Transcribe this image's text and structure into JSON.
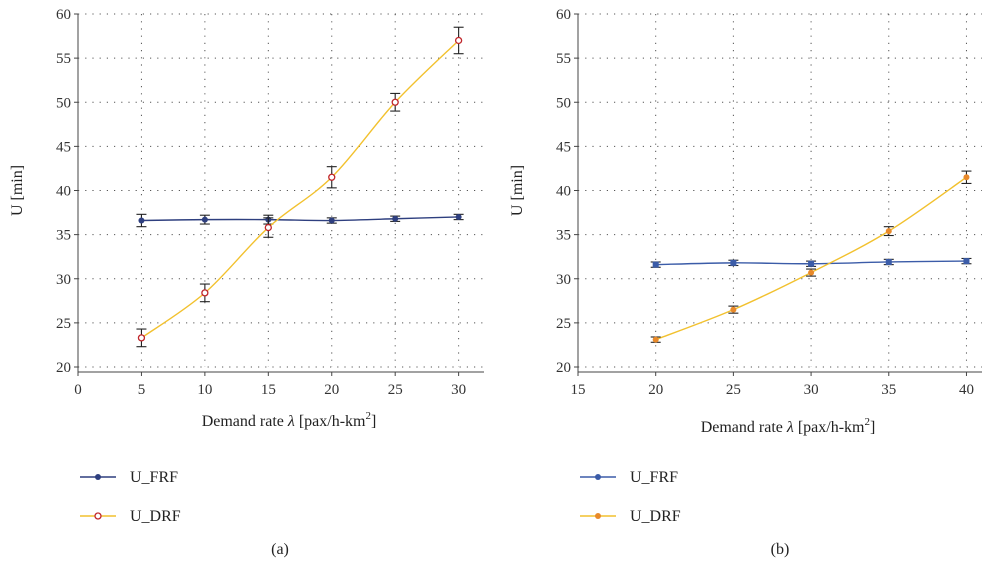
{
  "chart_data": [
    {
      "type": "line",
      "panel_label": "(a)",
      "xlabel_prefix": "Demand rate ",
      "xlabel_symbol": "λ",
      "xlabel_unit": " [pax/h-km",
      "xlabel_sup": "2",
      "xlabel_close": "]",
      "ylabel": "U [min]",
      "xlim": [
        0,
        32
      ],
      "ylim": [
        20,
        60
      ],
      "xticks": [
        0,
        5,
        10,
        15,
        20,
        25,
        30
      ],
      "yticks": [
        20,
        25,
        30,
        35,
        40,
        45,
        50,
        55,
        60
      ],
      "grid": "dotted",
      "legend_position": "bottom-left",
      "series": [
        {
          "name": "U_FRF",
          "color": "#2e3f7f",
          "marker": "filled-circle",
          "x": [
            5,
            10,
            15,
            20,
            25,
            30
          ],
          "y": [
            36.6,
            36.7,
            36.7,
            36.6,
            36.8,
            37.0
          ],
          "err": [
            0.7,
            0.5,
            0.5,
            0.3,
            0.3,
            0.3
          ]
        },
        {
          "name": "U_DRF",
          "color": "#f2c12e",
          "marker": "hollow-red-circle",
          "x": [
            5,
            10,
            15,
            20,
            25,
            30
          ],
          "y": [
            23.3,
            28.4,
            35.8,
            41.5,
            50.0,
            57.0
          ],
          "err": [
            1.0,
            1.0,
            1.1,
            1.2,
            1.0,
            1.5
          ]
        }
      ]
    },
    {
      "type": "line",
      "panel_label": "(b)",
      "xlabel_prefix": "Demand rate ",
      "xlabel_symbol": "λ",
      "xlabel_unit": " [pax/h-km",
      "xlabel_sup": "2",
      "xlabel_close": "]",
      "ylabel": "U [min]",
      "xlim": [
        15,
        41
      ],
      "ylim": [
        20,
        60
      ],
      "xticks": [
        15,
        20,
        25,
        30,
        35,
        40
      ],
      "yticks": [
        20,
        25,
        30,
        35,
        40,
        45,
        50,
        55,
        60
      ],
      "grid": "dotted",
      "legend_position": "bottom-left",
      "series": [
        {
          "name": "U_FRF",
          "color": "#3b5ca8",
          "marker": "filled-square",
          "x": [
            20,
            25,
            30,
            35,
            40
          ],
          "y": [
            31.6,
            31.8,
            31.7,
            31.9,
            32.0
          ],
          "err": [
            0.3,
            0.3,
            0.3,
            0.3,
            0.3
          ]
        },
        {
          "name": "U_DRF",
          "color": "#f2c12e",
          "marker": "filled-orange",
          "marker_color": "#e8892a",
          "x": [
            20,
            25,
            30,
            35,
            40
          ],
          "y": [
            23.1,
            26.5,
            30.7,
            35.4,
            41.5
          ],
          "err": [
            0.3,
            0.4,
            0.4,
            0.5,
            0.7
          ]
        }
      ]
    }
  ]
}
